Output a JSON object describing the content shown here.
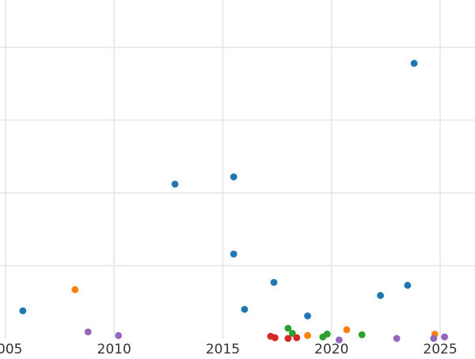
{
  "chart_data": {
    "type": "scatter",
    "title": "",
    "xlabel": "",
    "ylabel": "",
    "xlim": [
      2004.75,
      2026.6
    ],
    "ylim": [
      0,
      4.65
    ],
    "x_ticks": [
      2005,
      2010,
      2015,
      2020,
      2025
    ],
    "y_gridlines": [
      1,
      2,
      3,
      4
    ],
    "grid": true,
    "legend": "none",
    "series": [
      {
        "color": "#1f77b4",
        "points": [
          {
            "x": 2005.8,
            "y": 0.38
          },
          {
            "x": 2012.8,
            "y": 2.12
          },
          {
            "x": 2015.5,
            "y": 2.22
          },
          {
            "x": 2015.5,
            "y": 1.16
          },
          {
            "x": 2016.0,
            "y": 0.4
          },
          {
            "x": 2017.35,
            "y": 0.77
          },
          {
            "x": 2018.9,
            "y": 0.31
          },
          {
            "x": 2022.25,
            "y": 0.59
          },
          {
            "x": 2023.5,
            "y": 0.73
          },
          {
            "x": 2023.8,
            "y": 3.78
          }
        ]
      },
      {
        "color": "#ff7f0e",
        "points": [
          {
            "x": 2008.2,
            "y": 0.67
          },
          {
            "x": 2018.9,
            "y": 0.04
          },
          {
            "x": 2020.7,
            "y": 0.12
          },
          {
            "x": 2024.75,
            "y": 0.06
          }
        ]
      },
      {
        "color": "#2ca02c",
        "points": [
          {
            "x": 2018.0,
            "y": 0.14
          },
          {
            "x": 2018.2,
            "y": 0.07
          },
          {
            "x": 2019.6,
            "y": 0.02
          },
          {
            "x": 2019.8,
            "y": 0.06
          },
          {
            "x": 2021.4,
            "y": 0.05
          }
        ]
      },
      {
        "color": "#d62728",
        "points": [
          {
            "x": 2017.2,
            "y": 0.03
          },
          {
            "x": 2017.4,
            "y": 0.01
          },
          {
            "x": 2018.0,
            "y": 0.0
          },
          {
            "x": 2018.4,
            "y": 0.01
          }
        ]
      },
      {
        "color": "#9467bd",
        "points": [
          {
            "x": 2008.8,
            "y": 0.09
          },
          {
            "x": 2010.2,
            "y": 0.04
          },
          {
            "x": 2020.35,
            "y": -0.02
          },
          {
            "x": 2023.0,
            "y": 0.0
          },
          {
            "x": 2024.7,
            "y": 0.0
          },
          {
            "x": 2025.2,
            "y": 0.02
          }
        ]
      }
    ]
  }
}
